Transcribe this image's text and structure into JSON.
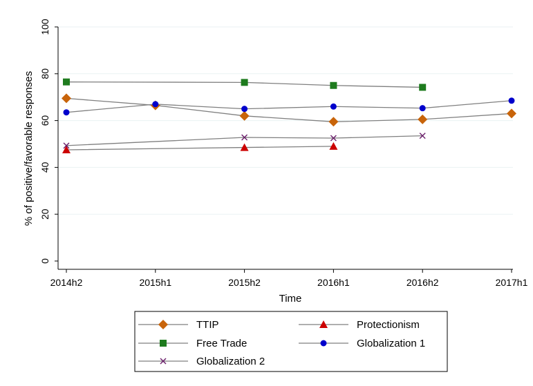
{
  "chart_data": {
    "type": "line",
    "title": "",
    "xlabel": "Time",
    "ylabel": "% of positive/favorable responses",
    "x": [
      "2014h2",
      "2015h1",
      "2015h2",
      "2016h1",
      "2016h2",
      "2017h1"
    ],
    "ylim": [
      0,
      100
    ],
    "yticks": [
      0,
      20,
      40,
      60,
      80,
      100
    ],
    "grid": "horizontal",
    "legend_position": "bottom",
    "series": [
      {
        "name": "TTIP",
        "marker": "diamond",
        "color": "#C8640A",
        "values": [
          69.5,
          66.5,
          62,
          59.5,
          60.5,
          63
        ]
      },
      {
        "name": "Protectionism",
        "marker": "triangle",
        "color": "#CC0000",
        "values": [
          47.5,
          null,
          48.5,
          49,
          null,
          null
        ]
      },
      {
        "name": "Free Trade",
        "marker": "square",
        "color": "#1E7B1E",
        "values": [
          76.5,
          null,
          76.3,
          75,
          74.2,
          null
        ]
      },
      {
        "name": "Globalization 1",
        "marker": "circle",
        "color": "#0000CC",
        "values": [
          63.5,
          67,
          65,
          66,
          65.3,
          68.5
        ]
      },
      {
        "name": "Globalization 2",
        "marker": "x",
        "color": "#6B1F6B",
        "values": [
          49.3,
          null,
          52.8,
          52.5,
          53.5,
          null
        ]
      }
    ]
  }
}
